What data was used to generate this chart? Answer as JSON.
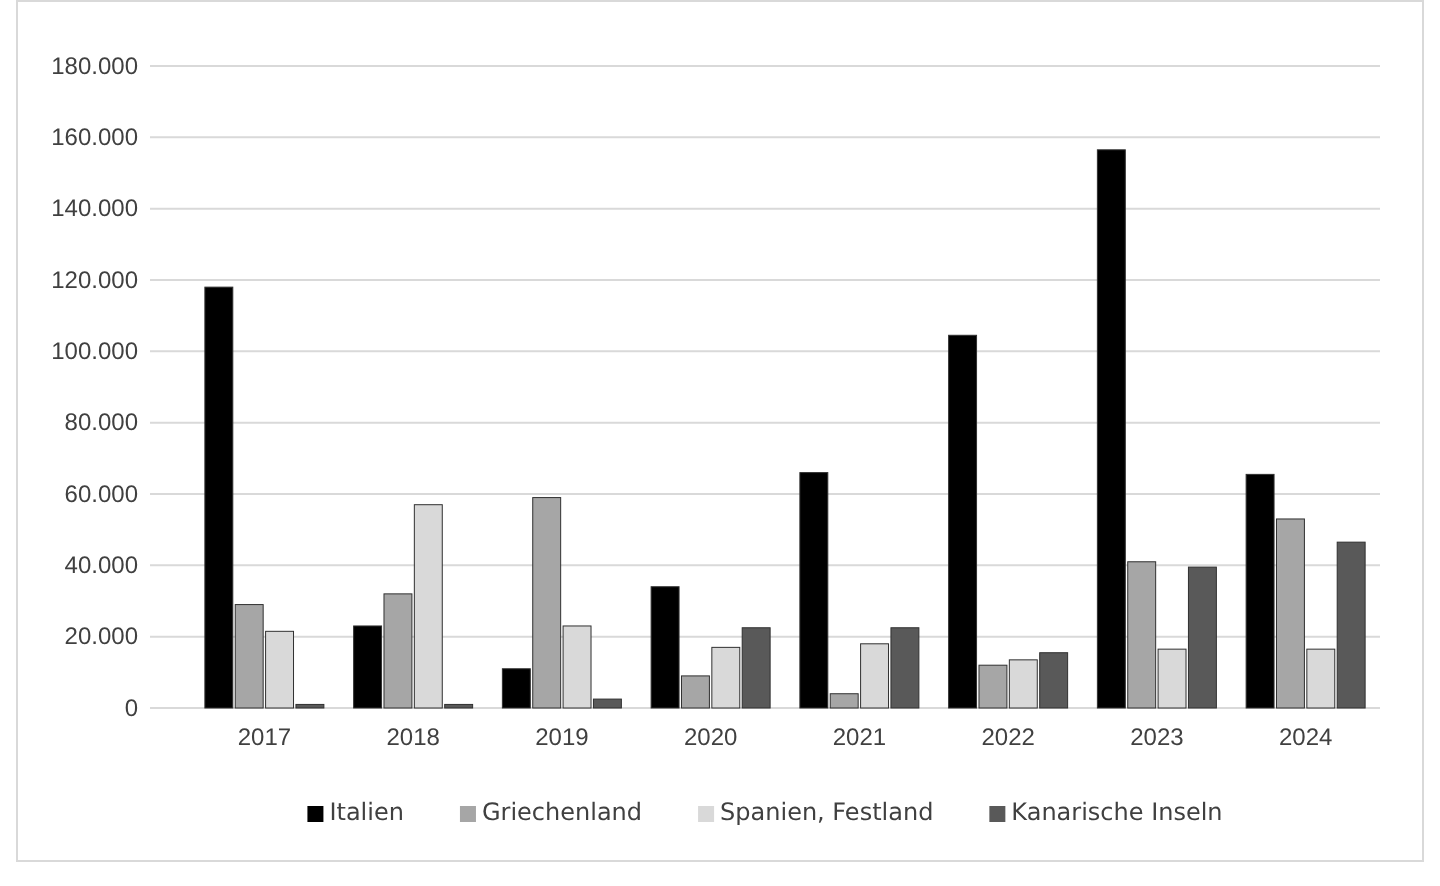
{
  "chart_data": {
    "type": "bar",
    "categories": [
      "2017",
      "2018",
      "2019",
      "2020",
      "2021",
      "2022",
      "2023",
      "2024"
    ],
    "series": [
      {
        "name": "Italien",
        "color": "#000000",
        "values": [
          118000,
          23000,
          11000,
          34000,
          66000,
          104500,
          156500,
          65500
        ]
      },
      {
        "name": "Griechenland",
        "color": "#a6a6a6",
        "values": [
          29000,
          32000,
          59000,
          9000,
          4000,
          12000,
          41000,
          53000
        ]
      },
      {
        "name": "Spanien, Festland",
        "color": "#d9d9d9",
        "values": [
          21500,
          57000,
          23000,
          17000,
          18000,
          13500,
          16500,
          16500
        ]
      },
      {
        "name": "Kanarische Inseln",
        "color": "#595959",
        "values": [
          1000,
          1000,
          2500,
          22500,
          22500,
          15500,
          39500,
          46500
        ]
      }
    ],
    "ylim": [
      0,
      180000
    ],
    "yticks": [
      {
        "value": 0,
        "label": "0"
      },
      {
        "value": 20000,
        "label": "20.000"
      },
      {
        "value": 40000,
        "label": "40.000"
      },
      {
        "value": 60000,
        "label": "60.000"
      },
      {
        "value": 80000,
        "label": "80.000"
      },
      {
        "value": 100000,
        "label": "100.000"
      },
      {
        "value": 120000,
        "label": "120.000"
      },
      {
        "value": 140000,
        "label": "140.000"
      },
      {
        "value": 160000,
        "label": "160.000"
      },
      {
        "value": 180000,
        "label": "180.000"
      }
    ],
    "grid": "y",
    "legend": "bottom"
  }
}
